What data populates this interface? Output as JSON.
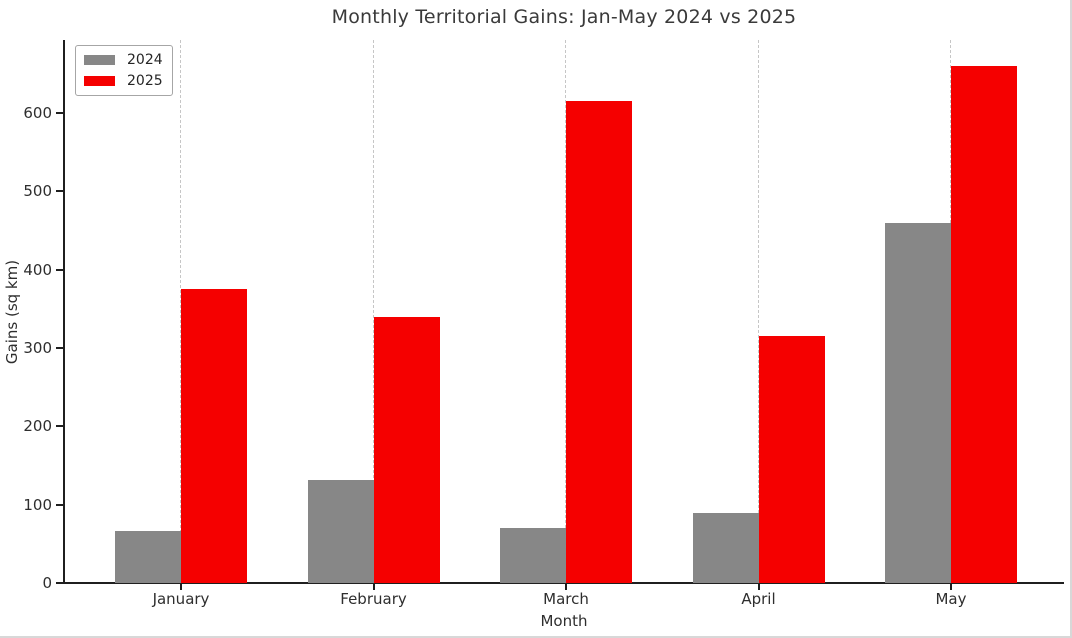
{
  "chart_data": {
    "type": "bar",
    "title": "Monthly Territorial Gains: Jan-May 2024 vs 2025",
    "xlabel": "Month",
    "ylabel": "Gains (sq km)",
    "categories": [
      "January",
      "February",
      "March",
      "April",
      "May"
    ],
    "series": [
      {
        "name": "2024",
        "color": "#878787",
        "values": [
          67,
          132,
          70,
          90,
          460
        ]
      },
      {
        "name": "2025",
        "color": "#f50000",
        "values": [
          375,
          340,
          615,
          315,
          660
        ]
      }
    ],
    "yticks": [
      0,
      100,
      200,
      300,
      400,
      500,
      600
    ],
    "ylim": [
      0,
      693
    ],
    "grid": "vertical-dashed",
    "legend_position": "upper-left",
    "axis_color": "#1f1f1f",
    "grid_color": "#c6c6c6",
    "text_color": "#2e2e2e",
    "title_color": "#3a3a3a"
  }
}
